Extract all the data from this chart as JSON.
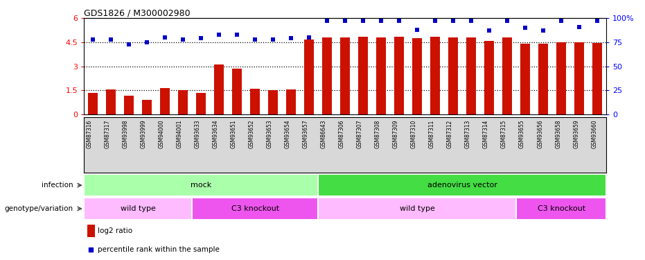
{
  "title": "GDS1826 / M300002980",
  "samples": [
    "GSM87316",
    "GSM87317",
    "GSM93998",
    "GSM93999",
    "GSM94000",
    "GSM94001",
    "GSM93633",
    "GSM93634",
    "GSM93651",
    "GSM93652",
    "GSM93653",
    "GSM93654",
    "GSM93657",
    "GSM86643",
    "GSM87306",
    "GSM87307",
    "GSM87308",
    "GSM87309",
    "GSM87310",
    "GSM87311",
    "GSM87312",
    "GSM87313",
    "GSM87314",
    "GSM87315",
    "GSM93655",
    "GSM93656",
    "GSM93658",
    "GSM93659",
    "GSM93660"
  ],
  "log2_ratio": [
    1.35,
    1.55,
    1.15,
    0.9,
    1.65,
    1.5,
    1.35,
    3.1,
    2.85,
    1.6,
    1.5,
    1.55,
    4.65,
    4.8,
    4.8,
    4.85,
    4.8,
    4.85,
    4.75,
    4.85,
    4.8,
    4.8,
    4.6,
    4.8,
    4.4,
    4.4,
    4.5,
    4.5,
    4.45
  ],
  "percentile_rank": [
    78,
    78,
    73,
    75,
    80,
    78,
    79,
    83,
    83,
    78,
    78,
    79,
    80,
    97,
    97,
    97,
    97,
    97,
    88,
    97,
    97,
    97,
    87,
    97,
    90,
    87,
    97,
    91,
    97
  ],
  "infection_groups": [
    {
      "label": "mock",
      "start": 0,
      "end": 12,
      "color": "#aaffaa"
    },
    {
      "label": "adenovirus vector",
      "start": 13,
      "end": 28,
      "color": "#44dd44"
    }
  ],
  "genotype_groups": [
    {
      "label": "wild type",
      "start": 0,
      "end": 5,
      "color": "#ffbbff"
    },
    {
      "label": "C3 knockout",
      "start": 6,
      "end": 12,
      "color": "#ee55ee"
    },
    {
      "label": "wild type",
      "start": 13,
      "end": 23,
      "color": "#ffbbff"
    },
    {
      "label": "C3 knockout",
      "start": 24,
      "end": 28,
      "color": "#ee55ee"
    }
  ],
  "bar_color": "#cc1100",
  "dot_color": "#0000cc",
  "ylim_left": [
    0,
    6
  ],
  "ylim_right": [
    0,
    100
  ],
  "yticks_left": [
    0,
    1.5,
    3.0,
    4.5,
    6.0
  ],
  "ytick_left_labels": [
    "0",
    "1.5",
    "3",
    "4.5",
    "6"
  ],
  "yticks_right": [
    0,
    25,
    50,
    75,
    100
  ],
  "ytick_right_labels": [
    "0",
    "25",
    "50",
    "75",
    "100%"
  ],
  "bar_width": 0.55,
  "infection_label": "infection",
  "genotype_label": "genotype/variation",
  "legend_bar_label": "log2 ratio",
  "legend_dot_label": "percentile rank within the sample"
}
